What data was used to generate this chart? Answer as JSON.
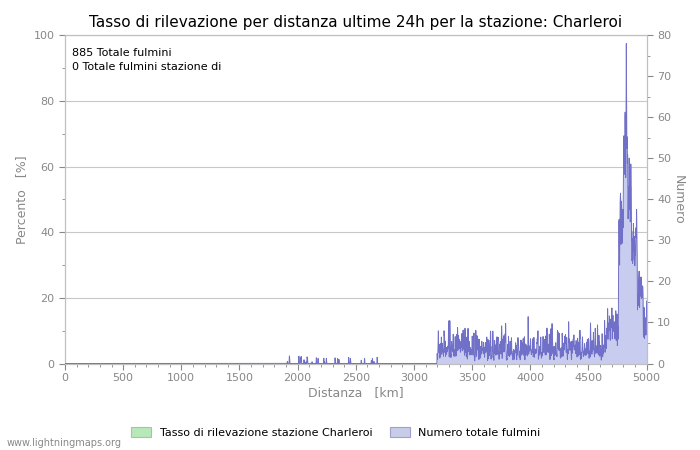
{
  "title": "Tasso di rilevazione per distanza ultime 24h per la stazione: Charleroi",
  "annotation_lines": [
    "885 Totale fulmini",
    "0 Totale fulmini stazione di"
  ],
  "xlabel": "Distanza   [km]",
  "ylabel_left": "Percento   [%]",
  "ylabel_right": "Numero",
  "xlim": [
    0,
    5000
  ],
  "ylim_left": [
    0,
    100
  ],
  "ylim_right": [
    0,
    80
  ],
  "xticks": [
    0,
    500,
    1000,
    1500,
    2000,
    2500,
    3000,
    3500,
    4000,
    4500,
    5000
  ],
  "yticks_left": [
    0,
    20,
    40,
    60,
    80,
    100
  ],
  "yticks_right": [
    0,
    10,
    20,
    30,
    40,
    50,
    60,
    70,
    80
  ],
  "legend_labels": [
    "Tasso di rilevazione stazione Charleroi",
    "Numero totale fulmini"
  ],
  "legend_colors_fill": [
    "#b8e8b8",
    "#c8cce8"
  ],
  "legend_colors_edge": [
    "#a0c8a0",
    "#a0a0d0"
  ],
  "watermark": "www.lightningmaps.org",
  "bg_color": "#ffffff",
  "plot_bg_color": "#ffffff",
  "line_color": "#7070c8",
  "fill_color": "#c8ccee",
  "grid_color": "#c8c8c8",
  "title_fontsize": 11,
  "axis_label_fontsize": 9,
  "tick_fontsize": 8,
  "annotation_fontsize": 8
}
